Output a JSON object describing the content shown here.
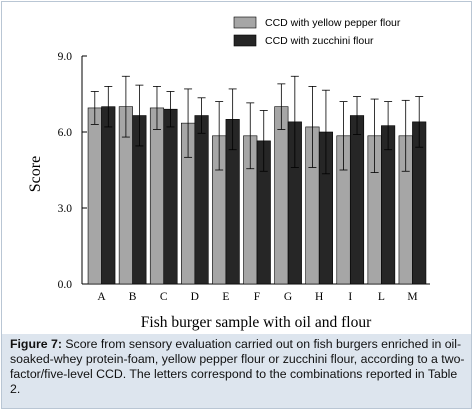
{
  "chart_data": {
    "type": "bar",
    "categories": [
      "A",
      "B",
      "C",
      "D",
      "E",
      "F",
      "G",
      "H",
      "I",
      "L",
      "M"
    ],
    "series": [
      {
        "name": "CCD with yellow pepper flour",
        "color": "#a6a6a6",
        "values": [
          6.95,
          7.0,
          6.95,
          6.35,
          5.85,
          5.85,
          7.0,
          6.2,
          5.85,
          5.85,
          5.85
        ],
        "errors": [
          0.65,
          1.2,
          0.85,
          1.35,
          1.35,
          1.3,
          0.9,
          1.6,
          1.35,
          1.45,
          1.4
        ]
      },
      {
        "name": "CCD with zucchini flour",
        "color": "#262626",
        "values": [
          7.0,
          6.65,
          6.9,
          6.65,
          6.5,
          5.65,
          6.4,
          6.0,
          6.65,
          6.25,
          6.4
        ],
        "errors": [
          0.8,
          1.2,
          0.7,
          0.7,
          1.2,
          1.2,
          1.8,
          1.65,
          0.75,
          0.95,
          1.0
        ]
      }
    ],
    "xlabel": "Fish burger sample with oil and flour",
    "ylabel": "Score",
    "ylim": [
      0,
      9
    ],
    "yticks": [
      "0.0",
      "3.0",
      "6.0",
      "9.0"
    ],
    "grid": false,
    "legend_position": "top-right"
  },
  "caption": {
    "label": "Figure 7:",
    "text": " Score from sensory evaluation carried out on fish burgers enriched in oil-soaked-whey protein-foam, yellow pepper flour or zucchini flour, according to a two-factor/five-level CCD. The letters correspond to the combinations reported in Table 2."
  }
}
